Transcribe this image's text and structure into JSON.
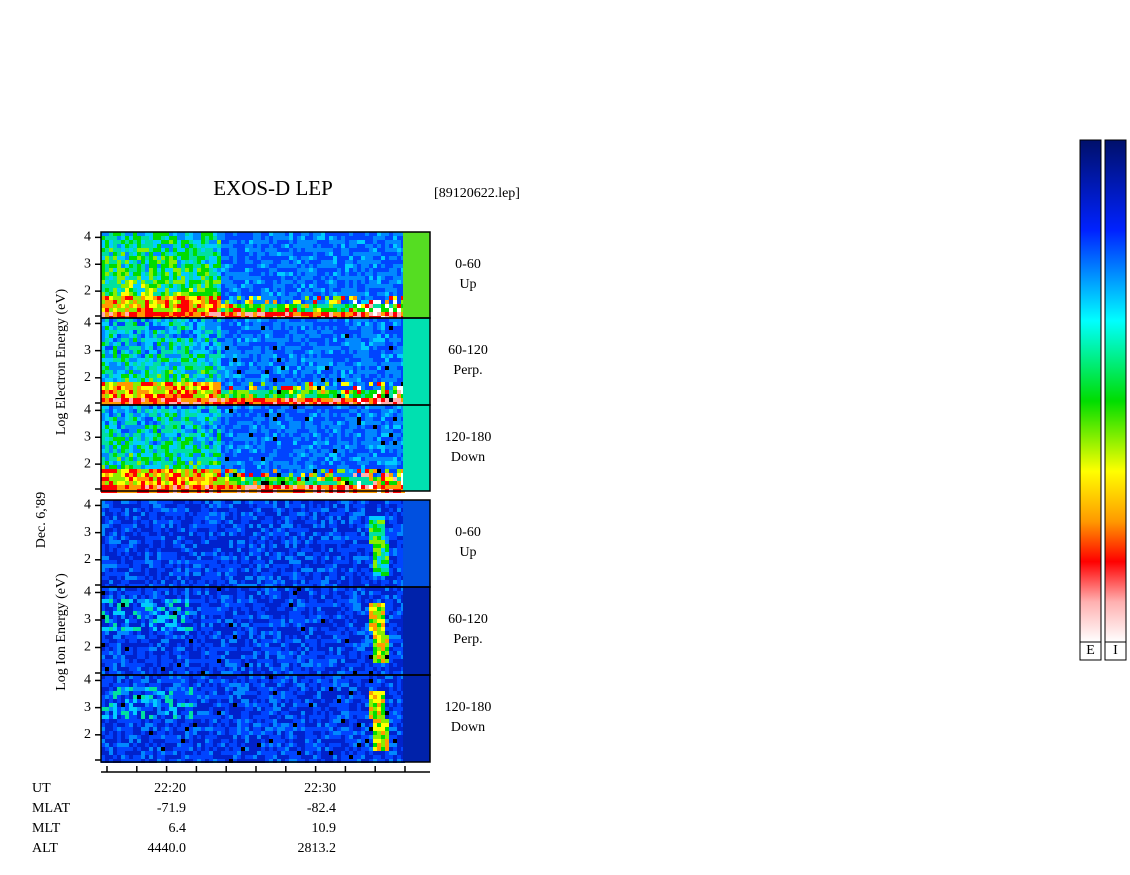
{
  "title": "EXOS-D LEP",
  "file": "[89120622.lep]",
  "electron_axis_label": "Log  Electron  Energy (eV)",
  "date_label": "Dec. 6,'89",
  "ion_axis_label": "Log  Ion  Energy (eV)",
  "ylim": [
    1,
    4.2
  ],
  "yticks": [
    2,
    3,
    4
  ],
  "panels": [
    {
      "species": "electron",
      "label": "0-60",
      "sublabel": "Up"
    },
    {
      "species": "electron",
      "label": "60-120",
      "sublabel": "Perp."
    },
    {
      "species": "electron",
      "label": "120-180",
      "sublabel": "Down"
    },
    {
      "species": "ion",
      "label": "0-60",
      "sublabel": "Up"
    },
    {
      "species": "ion",
      "label": "60-120",
      "sublabel": "Perp."
    },
    {
      "species": "ion",
      "label": "120-180",
      "sublabel": "Down"
    }
  ],
  "orbit_table": [
    {
      "label": "UT",
      "values": [
        "22:20",
        "22:30"
      ]
    },
    {
      "label": "MLAT",
      "values": [
        "-71.9",
        "-82.4"
      ]
    },
    {
      "label": "MLT",
      "values": [
        "6.4",
        "10.9"
      ]
    },
    {
      "label": "ALT",
      "values": [
        "4440.0",
        "2813.2"
      ]
    }
  ],
  "colorbars": [
    "E",
    "I"
  ]
}
